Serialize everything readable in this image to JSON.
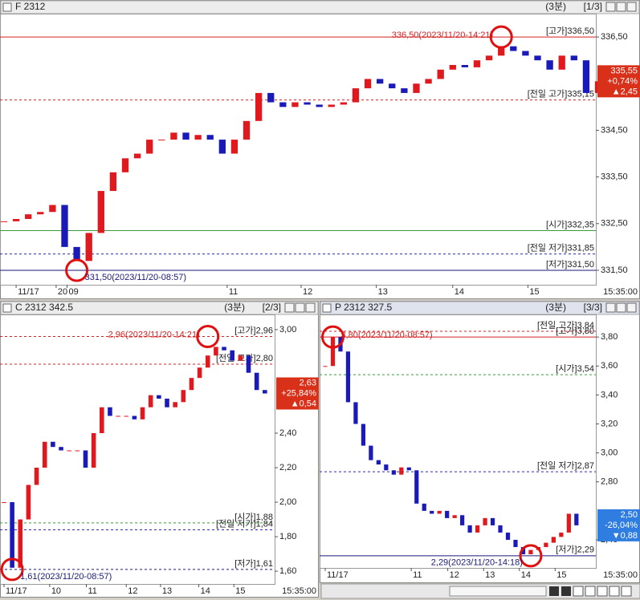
{
  "chart_data": [
    {
      "type": "candlestick",
      "title": "F 2312",
      "period": "(3분)",
      "page": "[1/3]",
      "time_label": "15:35:00",
      "up_color": "#e0191f",
      "down_color": "#1a1ab8",
      "xlim": [
        -0.33,
        48.8
      ],
      "xticks": [
        {
          "value": 1,
          "label": "11/17"
        },
        {
          "value": 4.3,
          "label": "20"
        },
        {
          "value": 5.2,
          "label": "09"
        },
        {
          "value": 18.4,
          "label": "11"
        },
        {
          "value": 24.5,
          "label": "12"
        },
        {
          "value": 30.7,
          "label": "13"
        },
        {
          "value": 37,
          "label": "14"
        },
        {
          "value": 43.2,
          "label": "15"
        }
      ],
      "ylim": [
        331.19,
        337.0
      ],
      "yticks": [
        {
          "value": 336.5,
          "label": "336,50"
        },
        {
          "value": 334.5,
          "label": "334,50"
        },
        {
          "value": 333.5,
          "label": "333,50"
        },
        {
          "value": 332.5,
          "label": "332,50"
        },
        {
          "value": 331.5,
          "label": "331,50"
        }
      ],
      "values": [
        332.55,
        332.6,
        332.7,
        332.75,
        332.9,
        332.0,
        331.7,
        332.3,
        333.2,
        333.6,
        333.9,
        334.0,
        334.3,
        334.3,
        334.45,
        334.3,
        334.4,
        334.3,
        334.0,
        334.3,
        334.7,
        335.3,
        335.1,
        335.0,
        335.1,
        335.05,
        335.0,
        335.05,
        335.1,
        335.4,
        335.6,
        335.5,
        335.4,
        335.3,
        335.5,
        335.6,
        335.8,
        335.9,
        335.85,
        336.0,
        336.1,
        336.3,
        336.2,
        336.1,
        336.0,
        335.8,
        336.1,
        336.0,
        335.3,
        335.55
      ],
      "reference_lines": [
        {
          "label": "[고가]336,50",
          "value": 336.5,
          "color": "#d42020",
          "dashed": false
        },
        {
          "label": "[전일 고가]335,15",
          "value": 335.15,
          "color": "#d42020",
          "dashed": true
        },
        {
          "label": "[시가]332,35",
          "value": 332.35,
          "color": "#3a9a3a",
          "dashed": false
        },
        {
          "label": "[전일 저가]331,85",
          "value": 331.85,
          "color": "#2a2ab0",
          "dashed": true
        },
        {
          "label": "[저가]331,50",
          "value": 331.5,
          "color": "#1a1a7a",
          "dashed": false
        }
      ],
      "annotations": [
        {
          "x": 41,
          "value": 336.5,
          "label": "336,50(2023/11/20-14:21)"
        },
        {
          "x": 6,
          "value": 331.5,
          "label": "331,50(2023/11/20-08:57)"
        }
      ],
      "last": {
        "value": 335.55,
        "labels": [
          "335,55",
          "+0,74%",
          "▲2,45"
        ],
        "color": "#d9301a"
      }
    },
    {
      "type": "candlestick",
      "title": "C 2312 342.5",
      "period": "(3분)",
      "page": "[2/3]",
      "time_label": "15:35:00",
      "up_color": "#e0191f",
      "down_color": "#1a1ab8",
      "xlim": [
        -0.49,
        33.2
      ],
      "xticks": [
        {
          "value": 0,
          "label": "11/17"
        },
        {
          "value": 5.6,
          "label": "10"
        },
        {
          "value": 10.1,
          "label": "11"
        },
        {
          "value": 15,
          "label": "12"
        },
        {
          "value": 19.2,
          "label": "13"
        },
        {
          "value": 23.9,
          "label": "14"
        },
        {
          "value": 28.2,
          "label": "15"
        }
      ],
      "ylim": [
        1.526,
        3.088
      ],
      "yticks": [
        {
          "value": 3.0,
          "label": "3,00"
        },
        {
          "value": 2.4,
          "label": "2,40"
        },
        {
          "value": 2.2,
          "label": "2,20"
        },
        {
          "value": 2.0,
          "label": "2,00"
        },
        {
          "value": 1.8,
          "label": "1,80"
        },
        {
          "value": 1.6,
          "label": "1,60"
        }
      ],
      "values": [
        2.0,
        1.62,
        1.9,
        2.1,
        2.2,
        2.35,
        2.32,
        2.3,
        2.3,
        2.3,
        2.2,
        2.4,
        2.55,
        2.5,
        2.5,
        2.5,
        2.48,
        2.55,
        2.62,
        2.6,
        2.55,
        2.58,
        2.65,
        2.72,
        2.78,
        2.85,
        2.9,
        2.88,
        2.82,
        2.85,
        2.75,
        2.65,
        2.63
      ],
      "reference_lines": [
        {
          "label": "[고가]2,96",
          "value": 2.96,
          "color": "#d42020",
          "dashed": true
        },
        {
          "label": "[전일 고가]2,80",
          "value": 2.8,
          "color": "#d42020",
          "dashed": true
        },
        {
          "label": "[시가]1,88",
          "value": 1.88,
          "color": "#3a9a3a",
          "dashed": true
        },
        {
          "label": "[전일 저가]1,84",
          "value": 1.84,
          "color": "#2a2ab0",
          "dashed": true
        },
        {
          "label": "[저가]1,61",
          "value": 1.61,
          "color": "#1a1a7a",
          "dashed": true
        }
      ],
      "annotations": [
        {
          "x": 25,
          "value": 2.96,
          "label": "2,96(2023/11/20-14:21)"
        },
        {
          "x": 1,
          "value": 1.61,
          "label": "1,61(2023/11/20-08:57)"
        }
      ],
      "last": {
        "value": 2.63,
        "labels": [
          "2,63",
          "+25,84%",
          "▲0,54"
        ],
        "color": "#d9301a"
      }
    },
    {
      "type": "candlestick",
      "title": "P 2312 327.5",
      "period": "(3분)",
      "page": "[3/3]",
      "time_label": "15:35:00",
      "up_color": "#e0191f",
      "down_color": "#1a1ab8",
      "xlim": [
        -0.74,
        35.55
      ],
      "xticks": [
        {
          "value": 0,
          "label": "11/17"
        },
        {
          "value": 11.3,
          "label": "11"
        },
        {
          "value": 16.1,
          "label": "12"
        },
        {
          "value": 20.8,
          "label": "13"
        },
        {
          "value": 25.5,
          "label": "14"
        },
        {
          "value": 30.2,
          "label": "15"
        }
      ],
      "ylim": [
        2.206,
        3.956
      ],
      "yticks": [
        {
          "value": 3.8,
          "label": "3,80"
        },
        {
          "value": 3.6,
          "label": "3,60"
        },
        {
          "value": 3.4,
          "label": "3,40"
        },
        {
          "value": 3.2,
          "label": "3,20"
        },
        {
          "value": 3.0,
          "label": "3,00"
        },
        {
          "value": 2.8,
          "label": "2,80"
        },
        {
          "value": 2.4,
          "label": "2,40"
        }
      ],
      "values": [
        3.6,
        3.8,
        3.7,
        3.35,
        3.2,
        3.05,
        2.95,
        2.92,
        2.88,
        2.85,
        2.9,
        2.88,
        2.65,
        2.6,
        2.58,
        2.6,
        2.55,
        2.57,
        2.5,
        2.45,
        2.5,
        2.55,
        2.5,
        2.45,
        2.4,
        2.35,
        2.3,
        2.33,
        2.35,
        2.38,
        2.42,
        2.45,
        2.58,
        2.5
      ],
      "reference_lines": [
        {
          "label": "[전일 고가]3,84",
          "value": 3.84,
          "color": "#d42020",
          "dashed": true
        },
        {
          "label": "[고가]3,80",
          "value": 3.8,
          "color": "#d42020",
          "dashed": false
        },
        {
          "label": "[시가]3,54",
          "value": 3.54,
          "color": "#3a9a3a",
          "dashed": true
        },
        {
          "label": "[전일 저가]2,87",
          "value": 2.87,
          "color": "#2a2ab0",
          "dashed": true
        },
        {
          "label": "[저가]2,29",
          "value": 2.29,
          "color": "#1a1a7a",
          "dashed": false
        }
      ],
      "annotations": [
        {
          "x": 1,
          "value": 3.8,
          "label": "3,80(2023/11/20-08:57)"
        },
        {
          "x": 27,
          "value": 2.29,
          "label": "2,29(2023/11/20-14:18)"
        }
      ],
      "last": {
        "value": 2.5,
        "labels": [
          "2,50",
          "-26,04%",
          "▼0,88"
        ],
        "color": "#2f7de0"
      }
    }
  ]
}
